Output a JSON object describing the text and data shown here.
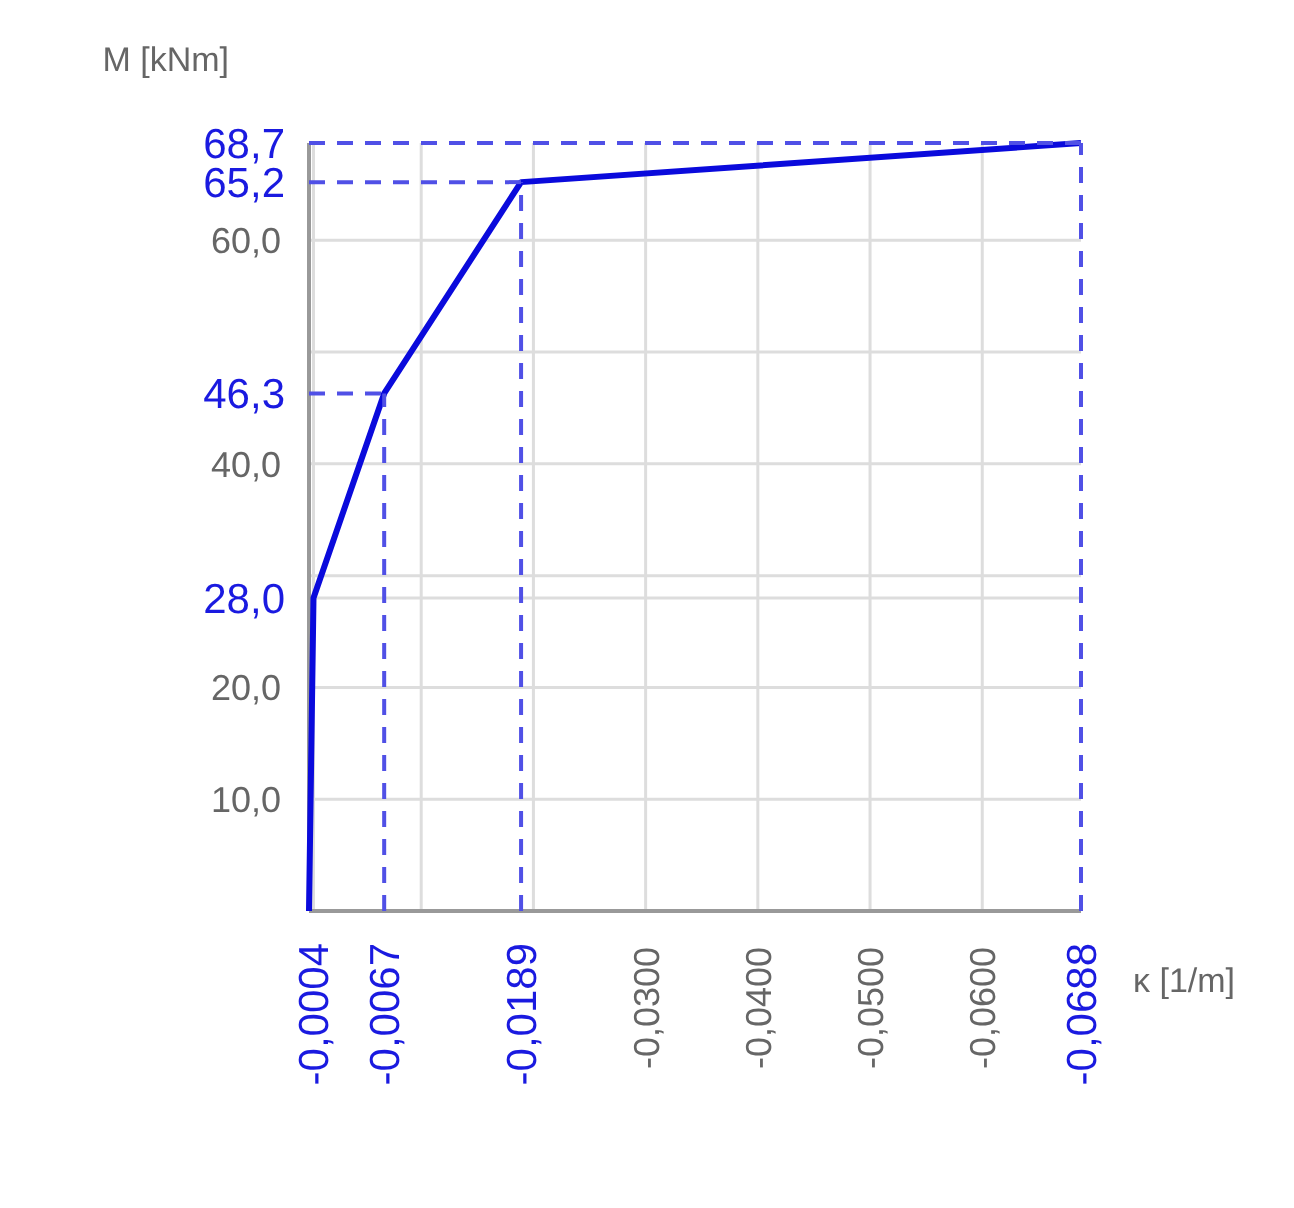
{
  "chart_data": {
    "type": "line",
    "xlabel": "κ [1/m]",
    "ylabel": "M [kNm]",
    "x": [
      0,
      -0.0004,
      -0.0067,
      -0.0189,
      -0.0688
    ],
    "series": [
      {
        "color": "#0a0adc",
        "values": [
          0,
          28.0,
          46.3,
          65.2,
          68.7
        ]
      }
    ],
    "xlim": [
      0,
      -0.0688
    ],
    "ylim": [
      0,
      68.7
    ],
    "xticks": [
      {
        "value": -0.0004,
        "label": "-0,0004"
      },
      {
        "value": -0.01,
        "label": null
      },
      {
        "value": -0.02,
        "label": null
      },
      {
        "value": -0.03,
        "label": "-0,0300"
      },
      {
        "value": -0.04,
        "label": "-0,0400"
      },
      {
        "value": -0.05,
        "label": "-0,0500"
      },
      {
        "value": -0.06,
        "label": "-0,0600"
      }
    ],
    "yticks": [
      {
        "value": 10,
        "label": "10,0"
      },
      {
        "value": 20,
        "label": "20,0"
      },
      {
        "value": 28.0,
        "label": "28,0"
      },
      {
        "value": 30,
        "label": null
      },
      {
        "value": 40,
        "label": "40,0"
      },
      {
        "value": 50,
        "label": null
      },
      {
        "value": 60,
        "label": "60,0"
      }
    ],
    "ref_lines": [
      {
        "axis": "x",
        "value": -0.0067,
        "label": "-0,0067",
        "color": "#5050e6",
        "line_style": "dashed"
      },
      {
        "axis": "x",
        "value": -0.0189,
        "label": "-0,0189",
        "color": "#5050e6",
        "line_style": "dashed"
      },
      {
        "axis": "x",
        "value": -0.0688,
        "label": "-0,0688",
        "color": "#5050e6",
        "line_style": "dashed"
      },
      {
        "axis": "y",
        "value": 46.3,
        "label": "46,3",
        "color": "#5050e6",
        "line_style": "dashed"
      },
      {
        "axis": "y",
        "value": 65.2,
        "label": "65,2",
        "color": "#5050e6",
        "line_style": "dashed"
      },
      {
        "axis": "y",
        "value": 68.7,
        "label": "68,7",
        "color": "#5050e6",
        "line_style": "dashed"
      }
    ],
    "grid": true,
    "marker": "none",
    "line_style": "solid"
  }
}
